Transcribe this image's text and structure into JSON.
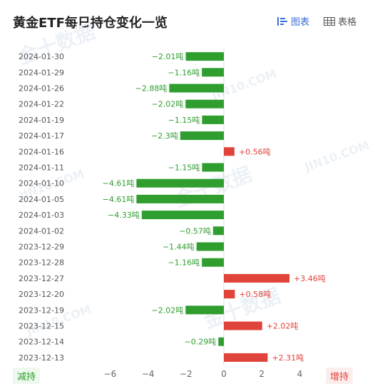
{
  "header": {
    "title": "黄金ETF每日持仓变化一览",
    "chart_tab": "图表",
    "table_tab": "表格"
  },
  "legend": {
    "decrease_label": "减持",
    "increase_label": "增持"
  },
  "colors": {
    "increase": "#e0433a",
    "decrease": "#2f9e2f",
    "accent": "#3b6ed8"
  },
  "chart_data": {
    "type": "bar",
    "orientation": "horizontal",
    "categories": [
      "2024-01-30",
      "2024-01-29",
      "2024-01-26",
      "2024-01-22",
      "2024-01-19",
      "2024-01-17",
      "2024-01-16",
      "2024-01-11",
      "2024-01-10",
      "2024-01-05",
      "2024-01-03",
      "2024-01-02",
      "2023-12-29",
      "2023-12-28",
      "2023-12-27",
      "2023-12-20",
      "2023-12-19",
      "2023-12-15",
      "2023-12-14",
      "2023-12-13"
    ],
    "values": [
      -2.01,
      -1.16,
      -2.88,
      -2.02,
      -1.15,
      -2.3,
      0.56,
      -1.15,
      -4.61,
      -4.61,
      -4.33,
      -0.57,
      -1.44,
      -1.16,
      3.46,
      0.58,
      -2.02,
      2.02,
      -0.29,
      2.31
    ],
    "labels": [
      "−2.01吨",
      "−1.16吨",
      "−2.88吨",
      "−2.02吨",
      "−1.15吨",
      "−2.3吨",
      "+0.56吨",
      "−1.15吨",
      "−4.61吨",
      "−4.61吨",
      "−4.33吨",
      "−0.57吨",
      "−1.44吨",
      "−1.16吨",
      "+3.46吨",
      "+0.58吨",
      "−2.02吨",
      "+2.02吨",
      "−0.29吨",
      "+2.31吨"
    ],
    "xticks": [
      -6,
      -4,
      -2,
      0,
      2,
      4
    ],
    "xtick_labels": [
      "−6",
      "−4",
      "−2",
      "0",
      "2",
      "4"
    ],
    "xlim": [
      -6,
      4
    ],
    "grid": false
  },
  "watermarks": [
    "金十数据",
    "JIN10.COM"
  ]
}
